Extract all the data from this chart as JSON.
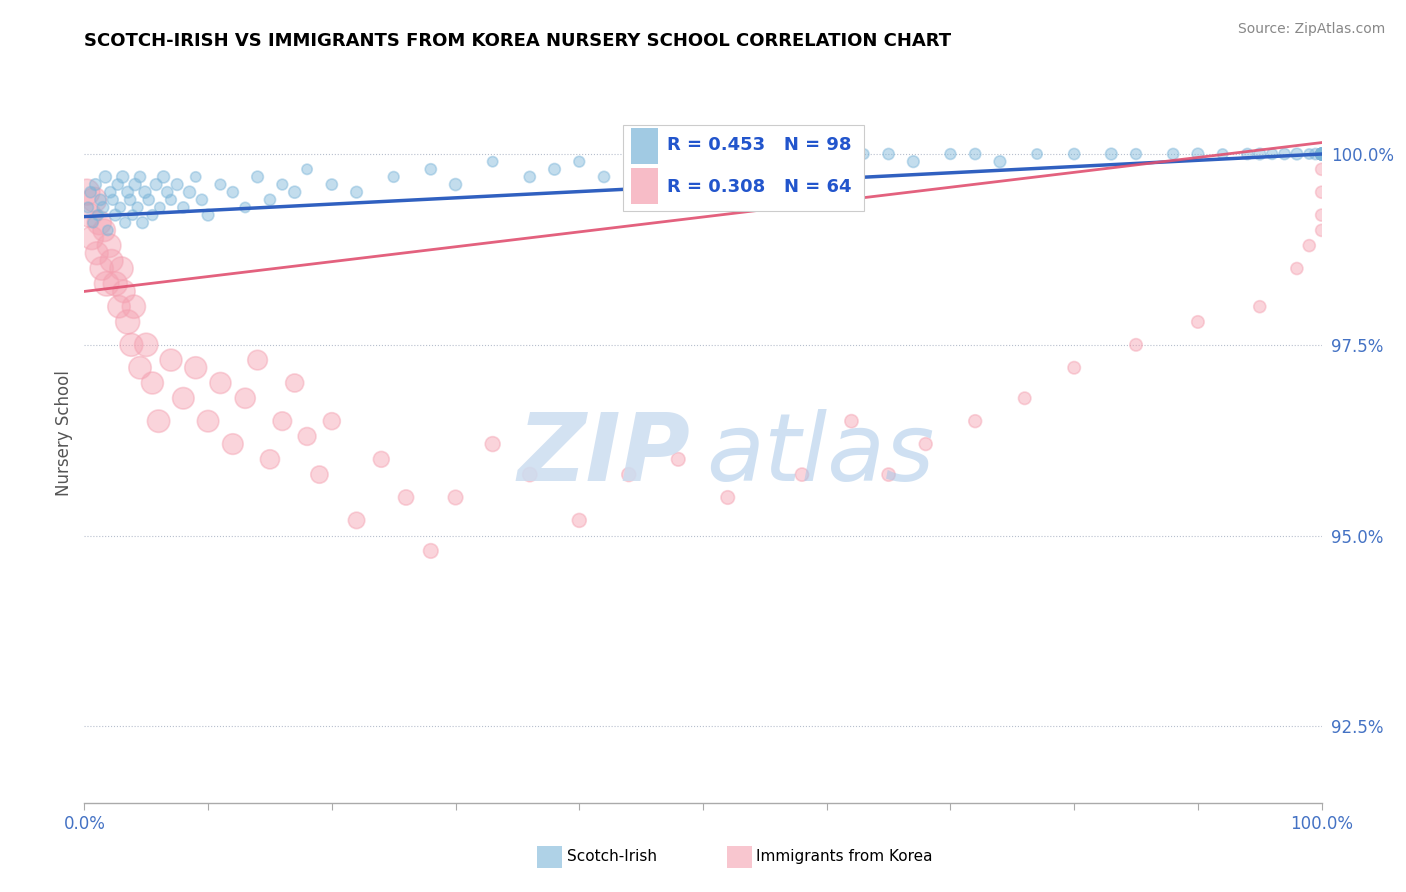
{
  "title": "SCOTCH-IRISH VS IMMIGRANTS FROM KOREA NURSERY SCHOOL CORRELATION CHART",
  "source": "Source: ZipAtlas.com",
  "ylabel": "Nursery School",
  "xlim": [
    0.0,
    100.0
  ],
  "ylim": [
    91.5,
    101.2
  ],
  "yticks": [
    92.5,
    95.0,
    97.5,
    100.0
  ],
  "ytick_labels": [
    "92.5%",
    "95.0%",
    "97.5%",
    "100.0%"
  ],
  "legend_r_blue": "R = 0.453",
  "legend_n_blue": "N = 98",
  "legend_r_pink": "R = 0.308",
  "legend_n_pink": "N = 64",
  "blue_color": "#7ab4d8",
  "pink_color": "#f4a0b0",
  "blue_line_color": "#3060c0",
  "pink_line_color": "#e05070",
  "blue_trend_start": 99.18,
  "blue_trend_end": 100.0,
  "pink_trend_start": 98.2,
  "pink_trend_end": 100.15,
  "blue_scatter_x": [
    0.3,
    0.5,
    0.7,
    0.9,
    1.1,
    1.3,
    1.5,
    1.7,
    1.9,
    2.1,
    2.3,
    2.5,
    2.7,
    2.9,
    3.1,
    3.3,
    3.5,
    3.7,
    3.9,
    4.1,
    4.3,
    4.5,
    4.7,
    4.9,
    5.2,
    5.5,
    5.8,
    6.1,
    6.4,
    6.7,
    7.0,
    7.5,
    8.0,
    8.5,
    9.0,
    9.5,
    10.0,
    11.0,
    12.0,
    13.0,
    14.0,
    15.0,
    16.0,
    17.0,
    18.0,
    20.0,
    22.0,
    25.0,
    28.0,
    30.0,
    33.0,
    36.0,
    38.0,
    40.0,
    42.0,
    45.0,
    48.0,
    50.0,
    53.0,
    55.0,
    58.0,
    60.0,
    63.0,
    65.0,
    67.0,
    70.0,
    72.0,
    74.0,
    77.0,
    80.0,
    83.0,
    85.0,
    88.0,
    90.0,
    92.0,
    94.0,
    95.0,
    96.0,
    97.0,
    98.0,
    99.0,
    99.5,
    100.0,
    100.0,
    100.0,
    100.0,
    100.0,
    100.0,
    100.0,
    100.0,
    100.0,
    100.0,
    100.0,
    100.0,
    100.0,
    100.0,
    100.0,
    100.0
  ],
  "blue_scatter_y": [
    99.3,
    99.5,
    99.1,
    99.6,
    99.2,
    99.4,
    99.3,
    99.7,
    99.0,
    99.5,
    99.4,
    99.2,
    99.6,
    99.3,
    99.7,
    99.1,
    99.5,
    99.4,
    99.2,
    99.6,
    99.3,
    99.7,
    99.1,
    99.5,
    99.4,
    99.2,
    99.6,
    99.3,
    99.7,
    99.5,
    99.4,
    99.6,
    99.3,
    99.5,
    99.7,
    99.4,
    99.2,
    99.6,
    99.5,
    99.3,
    99.7,
    99.4,
    99.6,
    99.5,
    99.8,
    99.6,
    99.5,
    99.7,
    99.8,
    99.6,
    99.9,
    99.7,
    99.8,
    99.9,
    99.7,
    100.0,
    99.8,
    99.9,
    100.0,
    99.8,
    100.0,
    99.9,
    100.0,
    100.0,
    99.9,
    100.0,
    100.0,
    99.9,
    100.0,
    100.0,
    100.0,
    100.0,
    100.0,
    100.0,
    100.0,
    100.0,
    100.0,
    100.0,
    100.0,
    100.0,
    100.0,
    100.0,
    100.0,
    100.0,
    100.0,
    100.0,
    100.0,
    100.0,
    100.0,
    100.0,
    100.0,
    100.0,
    100.0,
    100.0,
    100.0,
    100.0,
    100.0,
    100.0
  ],
  "blue_sizes": [
    60,
    65,
    55,
    70,
    60,
    65,
    70,
    75,
    55,
    65,
    60,
    70,
    65,
    55,
    75,
    60,
    70,
    65,
    55,
    75,
    60,
    65,
    70,
    75,
    65,
    60,
    70,
    55,
    75,
    65,
    60,
    70,
    65,
    75,
    55,
    65,
    70,
    60,
    65,
    55,
    70,
    65,
    60,
    75,
    55,
    65,
    70,
    60,
    65,
    75,
    55,
    65,
    70,
    60,
    65,
    70,
    55,
    65,
    70,
    60,
    65,
    70,
    55,
    65,
    70,
    60,
    65,
    70,
    55,
    65,
    70,
    60,
    65,
    70,
    55,
    65,
    70,
    60,
    65,
    70,
    55,
    65,
    70,
    60,
    65,
    70,
    55,
    65,
    70,
    60,
    65,
    70,
    55,
    65,
    70,
    60,
    65,
    70
  ],
  "pink_scatter_x": [
    0.2,
    0.4,
    0.6,
    0.8,
    1.0,
    1.2,
    1.4,
    1.6,
    1.8,
    2.0,
    2.2,
    2.5,
    2.8,
    3.0,
    3.2,
    3.5,
    3.8,
    4.0,
    4.5,
    5.0,
    5.5,
    6.0,
    7.0,
    8.0,
    9.0,
    10.0,
    11.0,
    12.0,
    13.0,
    14.0,
    15.0,
    16.0,
    17.0,
    18.0,
    19.0,
    20.0,
    22.0,
    24.0,
    26.0,
    28.0,
    30.0,
    33.0,
    36.0,
    40.0,
    44.0,
    48.0,
    52.0,
    58.0,
    62.0,
    65.0,
    68.0,
    72.0,
    76.0,
    80.0,
    85.0,
    90.0,
    95.0,
    98.0,
    99.0,
    100.0,
    100.0,
    100.0,
    100.0,
    100.0
  ],
  "pink_scatter_y": [
    99.5,
    99.2,
    98.9,
    99.4,
    98.7,
    99.1,
    98.5,
    99.0,
    98.3,
    98.8,
    98.6,
    98.3,
    98.0,
    98.5,
    98.2,
    97.8,
    97.5,
    98.0,
    97.2,
    97.5,
    97.0,
    96.5,
    97.3,
    96.8,
    97.2,
    96.5,
    97.0,
    96.2,
    96.8,
    97.3,
    96.0,
    96.5,
    97.0,
    96.3,
    95.8,
    96.5,
    95.2,
    96.0,
    95.5,
    94.8,
    95.5,
    96.2,
    95.8,
    95.2,
    95.8,
    96.0,
    95.5,
    95.8,
    96.5,
    95.8,
    96.2,
    96.5,
    96.8,
    97.2,
    97.5,
    97.8,
    98.0,
    98.5,
    98.8,
    99.0,
    99.2,
    99.5,
    99.8,
    100.0
  ],
  "pink_sizes": [
    350,
    300,
    280,
    320,
    270,
    300,
    280,
    260,
    310,
    290,
    270,
    300,
    260,
    280,
    260,
    300,
    270,
    280,
    260,
    280,
    250,
    260,
    250,
    240,
    250,
    240,
    230,
    220,
    210,
    200,
    190,
    180,
    170,
    165,
    155,
    150,
    140,
    130,
    120,
    110,
    110,
    115,
    105,
    100,
    100,
    95,
    95,
    90,
    90,
    90,
    85,
    85,
    80,
    80,
    80,
    80,
    75,
    75,
    75,
    75,
    75,
    75,
    75,
    75
  ]
}
